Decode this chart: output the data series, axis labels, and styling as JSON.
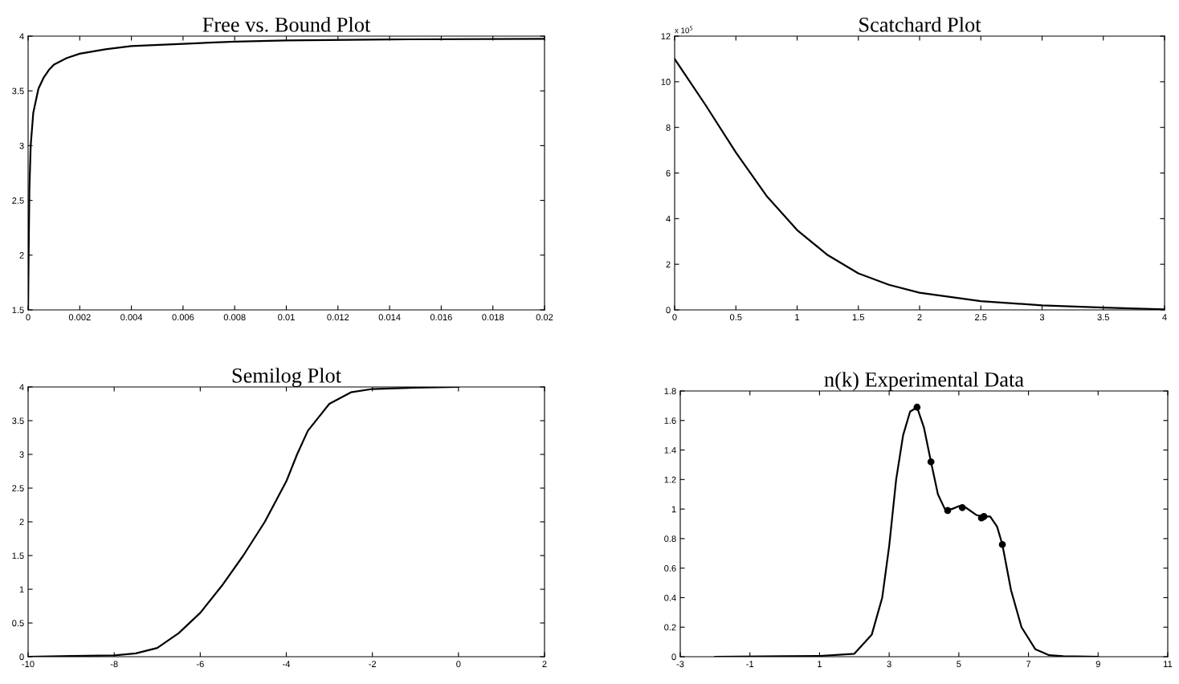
{
  "chart_data": [
    {
      "type": "line",
      "title": "Free vs. Bound Plot",
      "xlim": [
        0,
        0.02
      ],
      "ylim": [
        1.5,
        4
      ],
      "xticks": [
        0,
        0.002,
        0.004,
        0.006,
        0.008,
        0.01,
        0.012,
        0.014,
        0.016,
        0.018,
        0.02
      ],
      "yticks": [
        1.5,
        2,
        2.5,
        3,
        3.5,
        4
      ],
      "series": [
        {
          "color": "#000000",
          "x": [
            0,
            2e-05,
            5e-05,
            0.0001,
            0.0002,
            0.0004,
            0.0006,
            0.0008,
            0.001,
            0.0015,
            0.002,
            0.003,
            0.004,
            0.006,
            0.008,
            0.01,
            0.014,
            0.02
          ],
          "values": [
            1.5,
            2.0,
            2.6,
            3.0,
            3.3,
            3.52,
            3.62,
            3.69,
            3.74,
            3.8,
            3.84,
            3.88,
            3.91,
            3.93,
            3.95,
            3.96,
            3.97,
            3.975
          ]
        }
      ]
    },
    {
      "type": "line",
      "title": "Scatchard Plot",
      "annotations": [
        "x 10$^{5}$"
      ],
      "xlim": [
        0,
        4
      ],
      "ylim": [
        0,
        12
      ],
      "xticks": [
        0,
        0.5,
        1,
        1.5,
        2,
        2.5,
        3,
        3.5,
        4
      ],
      "yticks": [
        0,
        2,
        4,
        6,
        8,
        10,
        12
      ],
      "series": [
        {
          "color": "#000000",
          "x": [
            0,
            0.25,
            0.5,
            0.75,
            1,
            1.25,
            1.5,
            1.75,
            2,
            2.5,
            3,
            3.5,
            4
          ],
          "values": [
            11,
            9.0,
            6.9,
            5.0,
            3.5,
            2.4,
            1.6,
            1.1,
            0.75,
            0.38,
            0.2,
            0.1,
            0.02
          ]
        }
      ]
    },
    {
      "type": "line",
      "title": "Semilog Plot",
      "xlim": [
        -10,
        2
      ],
      "ylim": [
        0,
        4
      ],
      "xticks": [
        -10,
        -8,
        -6,
        -4,
        -2,
        0,
        2
      ],
      "yticks": [
        0,
        0.5,
        1,
        1.5,
        2,
        2.5,
        3,
        3.5,
        4
      ],
      "series": [
        {
          "color": "#000000",
          "x": [
            -10,
            -9,
            -8,
            -7.5,
            -7,
            -6.5,
            -6,
            -5.5,
            -5,
            -4.5,
            -4,
            -3.75,
            -3.5,
            -3,
            -2.5,
            -2,
            -1,
            0
          ],
          "values": [
            0,
            0.01,
            0.02,
            0.05,
            0.13,
            0.35,
            0.65,
            1.05,
            1.5,
            2.0,
            2.6,
            3.0,
            3.35,
            3.75,
            3.92,
            3.97,
            3.99,
            4
          ]
        }
      ]
    },
    {
      "type": "line",
      "title": "n(k) Experimental Data",
      "xlim": [
        -3,
        11
      ],
      "ylim": [
        0,
        1.8
      ],
      "xticks": [
        -3,
        -1,
        1,
        3,
        5,
        7,
        9,
        11
      ],
      "yticks": [
        0,
        0.2,
        0.4,
        0.6,
        0.8,
        1,
        1.2,
        1.4,
        1.6,
        1.8
      ],
      "series": [
        {
          "color": "#000000",
          "x": [
            -2,
            0,
            1,
            2,
            2.5,
            2.8,
            3,
            3.2,
            3.4,
            3.6,
            3.8,
            4,
            4.2,
            4.4,
            4.6,
            4.8,
            5,
            5.2,
            5.5,
            5.7,
            5.9,
            6.1,
            6.25,
            6.5,
            6.8,
            7.2,
            7.6,
            8,
            9
          ],
          "values": [
            0,
            0.003,
            0.005,
            0.02,
            0.15,
            0.4,
            0.75,
            1.2,
            1.5,
            1.66,
            1.69,
            1.55,
            1.32,
            1.1,
            1.0,
            1.0,
            1.02,
            1.01,
            0.96,
            0.95,
            0.95,
            0.88,
            0.76,
            0.45,
            0.2,
            0.05,
            0.01,
            0.003,
            0
          ]
        },
        {
          "type": "scatter",
          "marker": "circle",
          "color": "#000000",
          "x": [
            3.8,
            4.2,
            4.68,
            5.1,
            5.65,
            5.72,
            6.25
          ],
          "values": [
            1.69,
            1.32,
            0.99,
            1.01,
            0.94,
            0.95,
            0.76
          ]
        }
      ]
    }
  ]
}
